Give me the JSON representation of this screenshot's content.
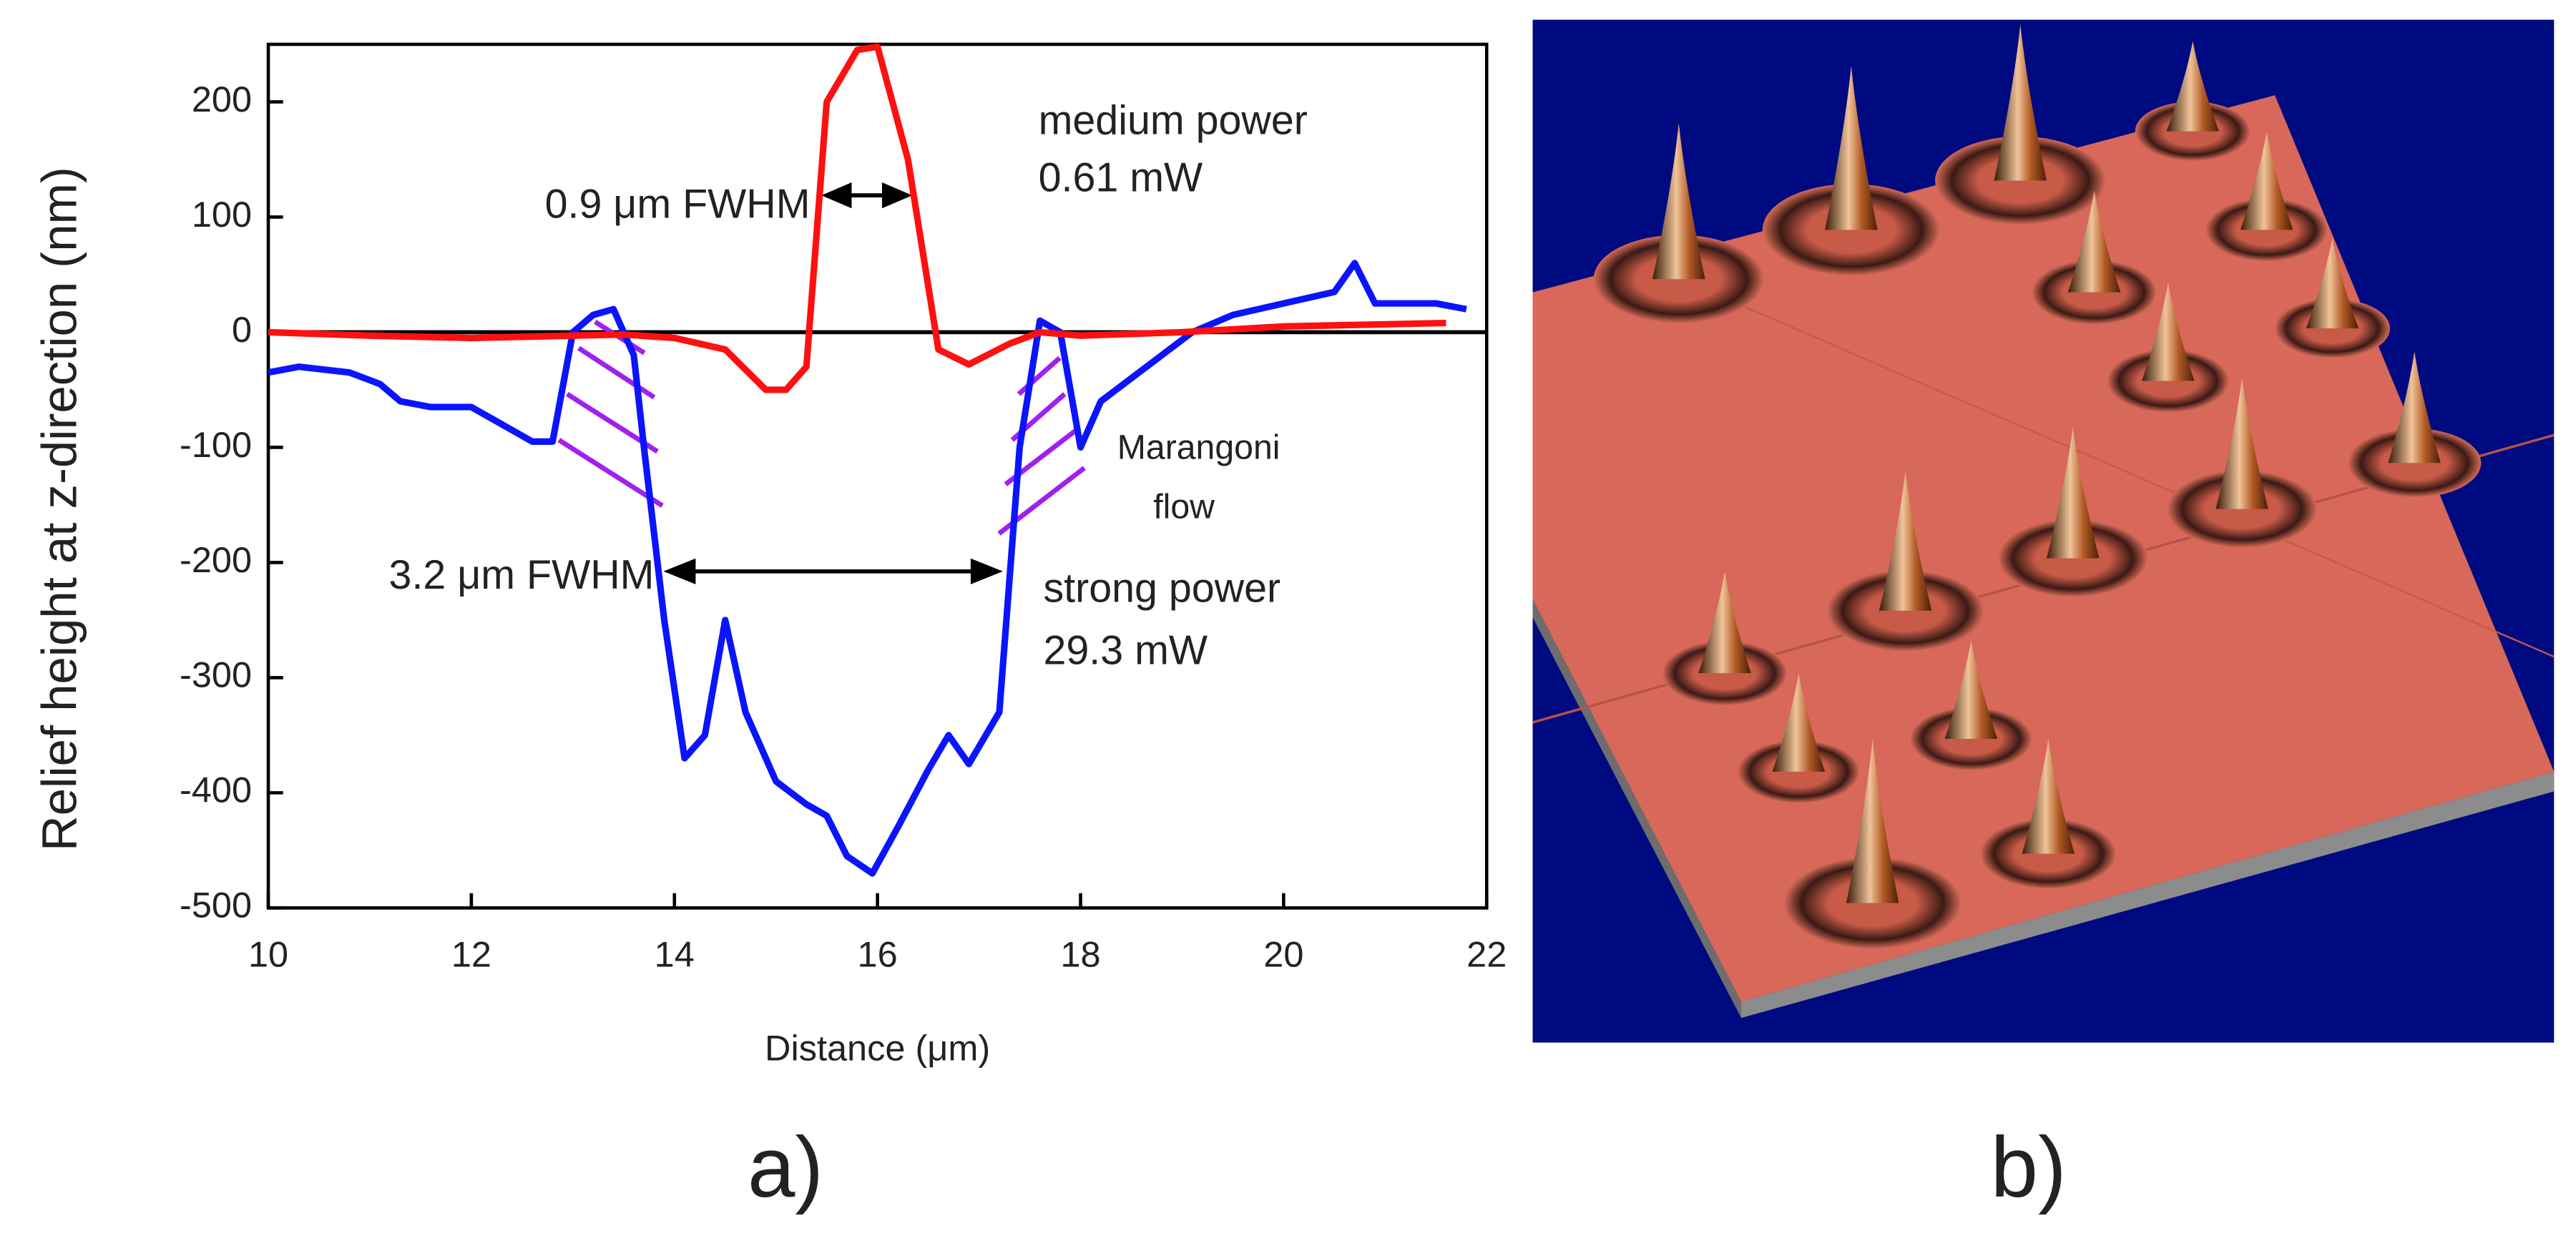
{
  "chart_data": {
    "type": "line",
    "xlabel": "Distance (μm)",
    "ylabel": "Relief height at z-direction (nm)",
    "xlim": [
      10,
      22
    ],
    "ylim": [
      -500,
      250
    ],
    "xticks": [
      10,
      12,
      14,
      16,
      18,
      20,
      22
    ],
    "yticks": [
      -500,
      -400,
      -300,
      -200,
      -100,
      0,
      100,
      200
    ],
    "series": [
      {
        "color": "#0a14ff",
        "x": [
          10.0,
          10.3,
          10.8,
          11.1,
          11.3,
          11.6,
          12.0,
          12.4,
          12.6,
          12.8,
          13.0,
          13.2,
          13.4,
          13.6,
          13.7,
          13.9,
          14.1,
          14.3,
          14.5,
          14.7,
          15.0,
          15.3,
          15.5,
          15.7,
          15.95,
          16.2,
          16.5,
          16.7,
          16.9,
          17.2,
          17.4,
          17.6,
          17.8,
          18.0,
          18.2,
          18.5,
          18.8,
          19.1,
          19.5,
          20.0,
          20.5,
          20.7,
          20.9,
          21.5,
          21.8
        ],
        "values": [
          -35,
          -30,
          -35,
          -45,
          -60,
          -65,
          -65,
          -85,
          -95,
          -95,
          0,
          15,
          20,
          -20,
          -100,
          -250,
          -370,
          -350,
          -250,
          -330,
          -390,
          -410,
          -420,
          -455,
          -470,
          -430,
          -380,
          -350,
          -375,
          -330,
          -100,
          10,
          0,
          -100,
          -60,
          -40,
          -20,
          0,
          15,
          25,
          35,
          60,
          25,
          25,
          20
        ]
      },
      {
        "color": "#ff1010",
        "x": [
          10.0,
          11.0,
          12.0,
          13.0,
          13.5,
          14.0,
          14.5,
          14.9,
          15.1,
          15.3,
          15.5,
          15.8,
          16.0,
          16.3,
          16.6,
          16.9,
          17.3,
          17.6,
          18.0,
          19.0,
          20.0,
          21.6
        ],
        "values": [
          0,
          -3,
          -5,
          -3,
          -2,
          -5,
          -15,
          -50,
          -50,
          -30,
          200,
          245,
          248,
          150,
          -15,
          -28,
          -10,
          0,
          -3,
          0,
          5,
          8
        ]
      }
    ],
    "annotations": [
      "medium power",
      "0.61 mW",
      "0.9 μm FWHM",
      "3.2 μm FWHM",
      "Marangoni",
      "flow",
      "strong power",
      "29.3 mW"
    ],
    "panel_labels": [
      "a)",
      "b)"
    ]
  }
}
